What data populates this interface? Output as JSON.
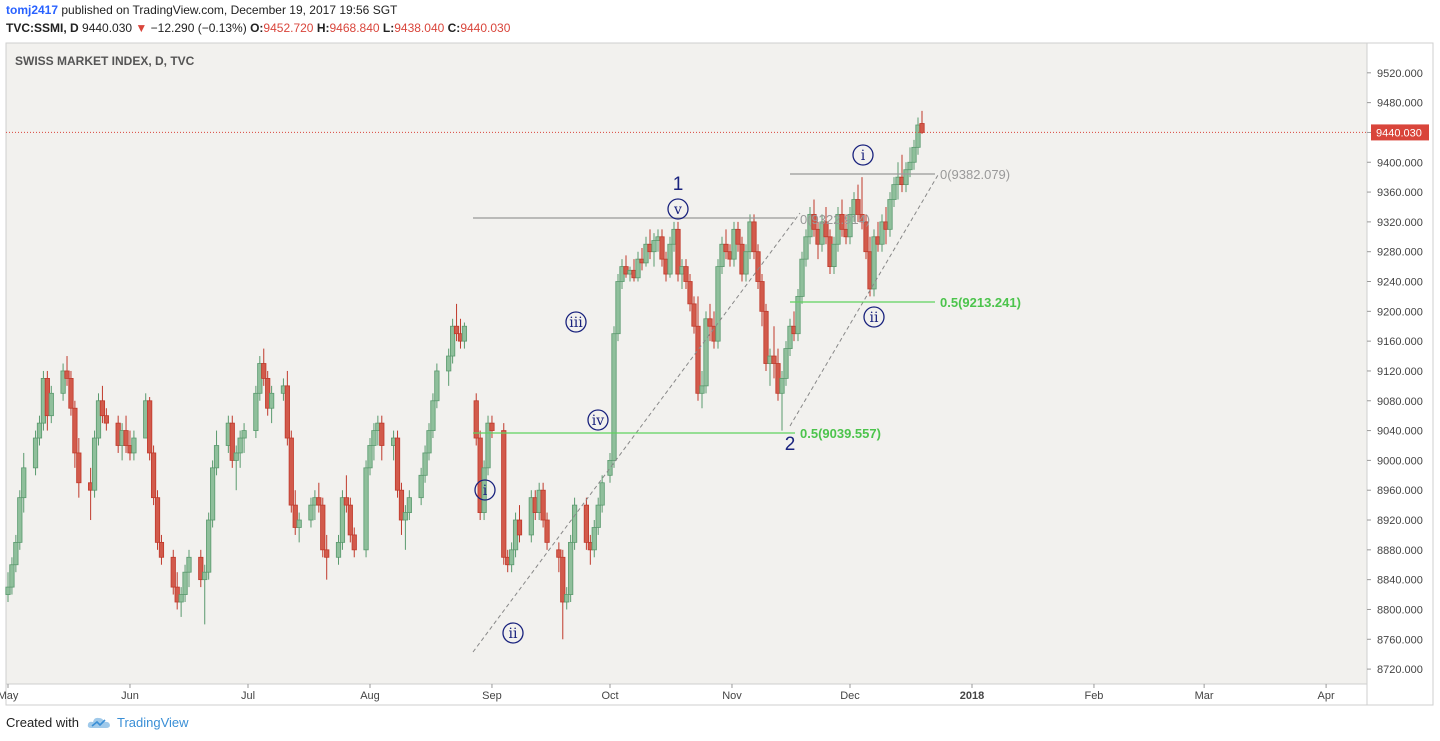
{
  "header": {
    "user": "tomj2417",
    "published_text": "published on TradingView.com, December 19, 2017 19:56 SGT",
    "symbol": "TVC:SSMI, D",
    "last": "9440.030",
    "change_arrow": "▼",
    "change": "−12.290 (−0.13%)",
    "o_label": "O:",
    "o_value": "9452.720",
    "h_label": "H:",
    "h_value": "9468.840",
    "l_label": "L:",
    "l_value": "9438.040",
    "c_label": "C:",
    "c_value": "9440.030"
  },
  "chart_title": "SWISS MARKET INDEX, D, TVC",
  "footer": {
    "created_with": "Created with",
    "brand": "TradingView",
    "logo_icon": "tradingview-cloud-icon"
  },
  "colors": {
    "up": "#5a9a6e",
    "up_fill": "#8fbf9b",
    "down": "#c0392b",
    "down_fill": "#d25a4b",
    "background": "#f2f1ee",
    "price_line": "#d9453b",
    "fib_green": "#5fd35f",
    "fib_gray": "#999999",
    "wave": "#1a237e"
  },
  "chart_data": {
    "type": "candlestick",
    "title": "SWISS MARKET INDEX, D, TVC",
    "y_range": [
      8700,
      9560
    ],
    "y_ticks": [
      "9520.000",
      "9480.000",
      "9440.000",
      "9400.000",
      "9360.000",
      "9320.000",
      "9280.000",
      "9240.000",
      "9200.000",
      "9160.000",
      "9120.000",
      "9080.000",
      "9040.000",
      "9000.000",
      "8960.000",
      "8920.000",
      "8880.000",
      "8840.000",
      "8800.000",
      "8760.000",
      "8720.000"
    ],
    "x_ticks": [
      {
        "label": "May",
        "date": "2017-05-01"
      },
      {
        "label": "Jun",
        "date": "2017-06-01"
      },
      {
        "label": "Jul",
        "date": "2017-07-01"
      },
      {
        "label": "Aug",
        "date": "2017-08-01"
      },
      {
        "label": "Sep",
        "date": "2017-09-01"
      },
      {
        "label": "Oct",
        "date": "2017-10-01"
      },
      {
        "label": "Nov",
        "date": "2017-11-01"
      },
      {
        "label": "Dec",
        "date": "2017-12-01"
      },
      {
        "label": "2018",
        "date": "2018-01-01"
      },
      {
        "label": "Feb",
        "date": "2018-02-01"
      },
      {
        "label": "Mar",
        "date": "2018-03-01"
      },
      {
        "label": "Apr",
        "date": "2018-04-01"
      }
    ],
    "last_price": {
      "value": 9440.03,
      "label": "9440.030"
    },
    "candles": [
      [
        "2017-05-01",
        8820,
        8850,
        8810,
        8830
      ],
      [
        "2017-05-02",
        8830,
        8870,
        8820,
        8860
      ],
      [
        "2017-05-03",
        8860,
        8900,
        8850,
        8890
      ],
      [
        "2017-05-04",
        8890,
        8960,
        8880,
        8950
      ],
      [
        "2017-05-05",
        8950,
        9010,
        8930,
        8990
      ],
      [
        "2017-05-08",
        8990,
        9040,
        8980,
        9030
      ],
      [
        "2017-05-09",
        9030,
        9060,
        9020,
        9050
      ],
      [
        "2017-05-10",
        9050,
        9120,
        9040,
        9110
      ],
      [
        "2017-05-11",
        9110,
        9120,
        9040,
        9060
      ],
      [
        "2017-05-12",
        9060,
        9100,
        9050,
        9090
      ],
      [
        "2017-05-15",
        9090,
        9130,
        9080,
        9120
      ],
      [
        "2017-05-16",
        9120,
        9140,
        9100,
        9110
      ],
      [
        "2017-05-17",
        9110,
        9120,
        9060,
        9070
      ],
      [
        "2017-05-18",
        9070,
        9080,
        8990,
        9010
      ],
      [
        "2017-05-19",
        9010,
        9030,
        8950,
        8970
      ],
      [
        "2017-05-22",
        8970,
        8990,
        8920,
        8960
      ],
      [
        "2017-05-23",
        8960,
        9040,
        8950,
        9030
      ],
      [
        "2017-05-24",
        9030,
        9090,
        9020,
        9080
      ],
      [
        "2017-05-25",
        9080,
        9100,
        9050,
        9060
      ],
      [
        "2017-05-26",
        9060,
        9070,
        9040,
        9050
      ],
      [
        "2017-05-29",
        9050,
        9060,
        9010,
        9020
      ],
      [
        "2017-05-30",
        9020,
        9050,
        9000,
        9040
      ],
      [
        "2017-05-31",
        9040,
        9060,
        9010,
        9020
      ],
      [
        "2017-06-01",
        9020,
        9040,
        9000,
        9010
      ],
      [
        "2017-06-02",
        9010,
        9040,
        9000,
        9030
      ],
      [
        "2017-06-05",
        9030,
        9090,
        9030,
        9080
      ],
      [
        "2017-06-06",
        9080,
        9085,
        9000,
        9010
      ],
      [
        "2017-06-07",
        9010,
        9020,
        8940,
        8950
      ],
      [
        "2017-06-08",
        8950,
        8960,
        8880,
        8890
      ],
      [
        "2017-06-09",
        8890,
        8900,
        8860,
        8870
      ],
      [
        "2017-06-12",
        8870,
        8880,
        8820,
        8830
      ],
      [
        "2017-06-13",
        8830,
        8850,
        8800,
        8810
      ],
      [
        "2017-06-14",
        8810,
        8830,
        8790,
        8820
      ],
      [
        "2017-06-15",
        8820,
        8860,
        8810,
        8850
      ],
      [
        "2017-06-16",
        8850,
        8880,
        8830,
        8870
      ],
      [
        "2017-06-19",
        8870,
        8880,
        8830,
        8840
      ],
      [
        "2017-06-20",
        8840,
        8860,
        8780,
        8850
      ],
      [
        "2017-06-21",
        8850,
        8930,
        8840,
        8920
      ],
      [
        "2017-06-22",
        8920,
        9000,
        8910,
        8990
      ],
      [
        "2017-06-23",
        8990,
        9040,
        8980,
        9020
      ],
      [
        "2017-06-26",
        9020,
        9060,
        9010,
        9050
      ],
      [
        "2017-06-27",
        9050,
        9060,
        8990,
        9000
      ],
      [
        "2017-06-28",
        9000,
        9020,
        8960,
        9010
      ],
      [
        "2017-06-29",
        9010,
        9040,
        8990,
        9030
      ],
      [
        "2017-06-30",
        9030,
        9050,
        9010,
        9040
      ],
      [
        "2017-07-03",
        9040,
        9100,
        9030,
        9090
      ],
      [
        "2017-07-04",
        9090,
        9140,
        9080,
        9130
      ],
      [
        "2017-07-05",
        9130,
        9150,
        9100,
        9110
      ],
      [
        "2017-07-06",
        9110,
        9120,
        9060,
        9070
      ],
      [
        "2017-07-07",
        9070,
        9100,
        9050,
        9090
      ],
      [
        "2017-07-10",
        9090,
        9110,
        9080,
        9100
      ],
      [
        "2017-07-11",
        9100,
        9120,
        9020,
        9030
      ],
      [
        "2017-07-12",
        9030,
        9040,
        8930,
        8940
      ],
      [
        "2017-07-13",
        8940,
        8960,
        8900,
        8910
      ],
      [
        "2017-07-14",
        8910,
        8930,
        8890,
        8920
      ],
      [
        "2017-07-17",
        8920,
        8950,
        8910,
        8940
      ],
      [
        "2017-07-18",
        8940,
        8960,
        8920,
        8950
      ],
      [
        "2017-07-19",
        8950,
        8970,
        8930,
        8940
      ],
      [
        "2017-07-20",
        8940,
        8950,
        8870,
        8880
      ],
      [
        "2017-07-21",
        8880,
        8900,
        8840,
        8870
      ],
      [
        "2017-07-24",
        8870,
        8900,
        8860,
        8890
      ],
      [
        "2017-07-25",
        8890,
        8960,
        8880,
        8950
      ],
      [
        "2017-07-26",
        8950,
        8980,
        8930,
        8940
      ],
      [
        "2017-07-27",
        8940,
        8950,
        8890,
        8900
      ],
      [
        "2017-07-28",
        8900,
        8910,
        8870,
        8880
      ],
      [
        "2017-07-31",
        8880,
        9000,
        8870,
        8990
      ],
      [
        "2017-08-01",
        8990,
        9030,
        8980,
        9020
      ],
      [
        "2017-08-02",
        9020,
        9050,
        9000,
        9040
      ],
      [
        "2017-08-03",
        9040,
        9060,
        9020,
        9050
      ],
      [
        "2017-08-04",
        9050,
        9060,
        9000,
        9020
      ],
      [
        "2017-08-07",
        9020,
        9040,
        9000,
        9030
      ],
      [
        "2017-08-08",
        9030,
        9040,
        8950,
        8960
      ],
      [
        "2017-08-09",
        8960,
        8970,
        8900,
        8920
      ],
      [
        "2017-08-10",
        8920,
        8940,
        8880,
        8930
      ],
      [
        "2017-08-11",
        8930,
        8960,
        8920,
        8950
      ],
      [
        "2017-08-14",
        8950,
        8990,
        8940,
        8980
      ],
      [
        "2017-08-15",
        8980,
        9020,
        8970,
        9010
      ],
      [
        "2017-08-16",
        9010,
        9050,
        9000,
        9040
      ],
      [
        "2017-08-17",
        9040,
        9090,
        9030,
        9080
      ],
      [
        "2017-08-18",
        9080,
        9130,
        9070,
        9120
      ],
      [
        "2017-08-21",
        9120,
        9150,
        9100,
        9140
      ],
      [
        "2017-08-22",
        9140,
        9190,
        9130,
        9180
      ],
      [
        "2017-08-23",
        9180,
        9210,
        9160,
        9170
      ],
      [
        "2017-08-24",
        9170,
        9190,
        9150,
        9160
      ],
      [
        "2017-08-25",
        9160,
        9185,
        9150,
        9180
      ],
      [
        "2017-08-28",
        9080,
        9090,
        9020,
        9030
      ],
      [
        "2017-08-29",
        9030,
        9040,
        8920,
        8930
      ],
      [
        "2017-08-30",
        8930,
        9000,
        8920,
        8990
      ],
      [
        "2017-08-31",
        8990,
        9060,
        8980,
        9050
      ],
      [
        "2017-09-01",
        9050,
        9060,
        9030,
        9040
      ],
      [
        "2017-09-04",
        9040,
        9050,
        8860,
        8870
      ],
      [
        "2017-09-05",
        8870,
        8880,
        8850,
        8860
      ],
      [
        "2017-09-06",
        8860,
        8890,
        8850,
        8880
      ],
      [
        "2017-09-07",
        8880,
        8930,
        8870,
        8920
      ],
      [
        "2017-09-08",
        8920,
        8940,
        8890,
        8900
      ],
      [
        "2017-09-11",
        8900,
        8960,
        8890,
        8950
      ],
      [
        "2017-09-12",
        8950,
        8960,
        8920,
        8930
      ],
      [
        "2017-09-13",
        8930,
        8970,
        8920,
        8960
      ],
      [
        "2017-09-14",
        8960,
        8970,
        8910,
        8920
      ],
      [
        "2017-09-15",
        8920,
        8930,
        8880,
        8890
      ],
      [
        "2017-09-18",
        8880,
        8890,
        8850,
        8870
      ],
      [
        "2017-09-19",
        8870,
        8880,
        8760,
        8810
      ],
      [
        "2017-09-20",
        8810,
        8830,
        8800,
        8820
      ],
      [
        "2017-09-21",
        8820,
        8900,
        8810,
        8890
      ],
      [
        "2017-09-22",
        8890,
        8950,
        8880,
        8940
      ],
      [
        "2017-09-25",
        8940,
        8950,
        8880,
        8890
      ],
      [
        "2017-09-26",
        8890,
        8900,
        8860,
        8880
      ],
      [
        "2017-09-27",
        8880,
        8920,
        8870,
        8910
      ],
      [
        "2017-09-28",
        8910,
        8950,
        8900,
        8940
      ],
      [
        "2017-09-29",
        8940,
        8980,
        8930,
        8970
      ]
    ],
    "fib_levels": [
      {
        "label": "0(9382.079)",
        "value": 9382.079,
        "color": "gray"
      },
      {
        "label": "0.5(9213.241)",
        "value": 9213.241,
        "color": "green"
      },
      {
        "label": "0.5(9039.557)",
        "value": 9039.557,
        "color": "green"
      },
      {
        "label": "0(9322.914)",
        "value": 9322.914,
        "color": "gray"
      }
    ],
    "annotations": [
      {
        "text": "1",
        "circled": false
      },
      {
        "text": "v",
        "circled": true
      },
      {
        "text": "i",
        "circled": true
      },
      {
        "text": "ii",
        "circled": true
      },
      {
        "text": "iii",
        "circled": true
      },
      {
        "text": "iv",
        "circled": true
      },
      {
        "text": "i",
        "circled": true
      },
      {
        "text": "ii",
        "circled": true
      },
      {
        "text": "2",
        "circled": false
      }
    ]
  }
}
